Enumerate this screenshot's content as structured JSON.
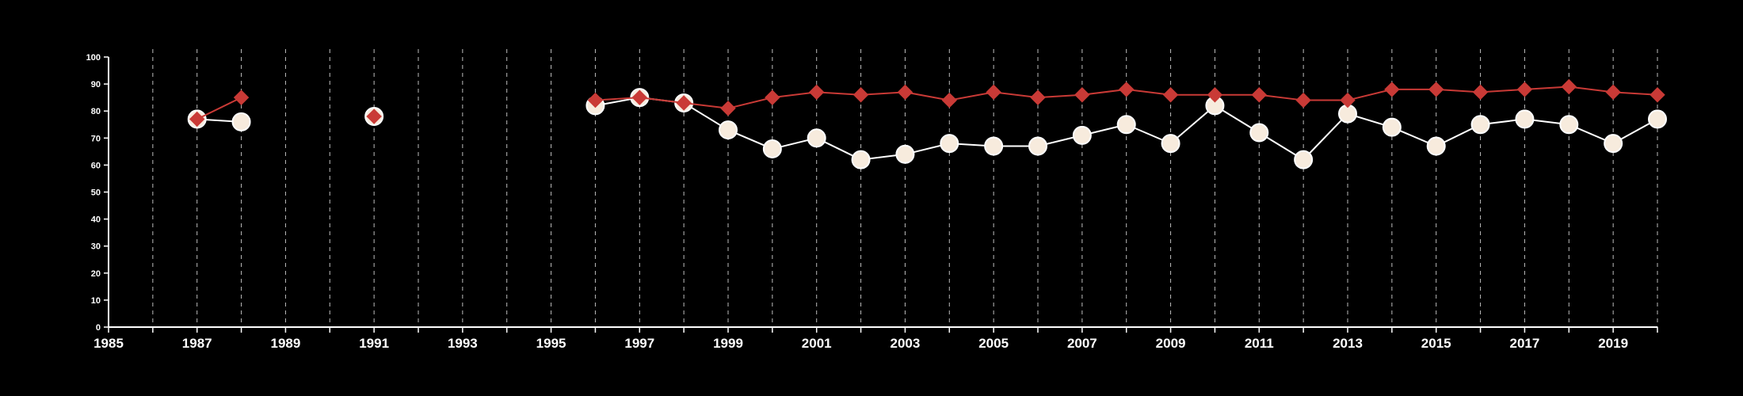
{
  "chart_data": {
    "type": "line",
    "title": "",
    "xlabel": "",
    "ylabel": "",
    "xlim": [
      1985,
      2020
    ],
    "ylim": [
      0,
      100
    ],
    "xticks": [
      1985,
      1987,
      1989,
      1991,
      1993,
      1995,
      1997,
      1999,
      2001,
      2003,
      2005,
      2007,
      2009,
      2011,
      2013,
      2015,
      2017,
      2019
    ],
    "yticks": [
      0,
      10,
      20,
      30,
      40,
      50,
      60,
      70,
      80,
      90,
      100
    ],
    "vertical_gridlines": "dashed, every year from 1986 to 2020",
    "background": "#000000",
    "axis_color": "#ffffff",
    "series": [
      {
        "marker": "circle",
        "color": "#ffffff",
        "fill": "#f7ebdd",
        "points": [
          [
            1987,
            77
          ],
          [
            1988,
            76
          ],
          null,
          [
            1991,
            78
          ],
          null,
          [
            1996,
            82
          ],
          [
            1997,
            85
          ],
          [
            1998,
            83
          ],
          [
            1999,
            73
          ],
          [
            2000,
            66
          ],
          [
            2001,
            70
          ],
          [
            2002,
            62
          ],
          [
            2003,
            64
          ],
          [
            2004,
            68
          ],
          [
            2005,
            67
          ],
          [
            2006,
            67
          ],
          [
            2007,
            71
          ],
          [
            2008,
            75
          ],
          [
            2009,
            68
          ],
          [
            2010,
            82
          ],
          [
            2011,
            72
          ],
          [
            2012,
            62
          ],
          [
            2013,
            79
          ],
          [
            2014,
            74
          ],
          [
            2015,
            67
          ],
          [
            2016,
            75
          ],
          [
            2017,
            77
          ],
          [
            2018,
            75
          ],
          [
            2019,
            68
          ],
          [
            2020,
            77
          ]
        ]
      },
      {
        "marker": "diamond",
        "color": "#c93a36",
        "fill": "#c93a36",
        "points": [
          [
            1987,
            77
          ],
          [
            1988,
            85
          ],
          null,
          [
            1991,
            78
          ],
          null,
          [
            1996,
            84
          ],
          [
            1997,
            85
          ],
          [
            1998,
            83
          ],
          [
            1999,
            81
          ],
          [
            2000,
            85
          ],
          [
            2001,
            87
          ],
          [
            2002,
            86
          ],
          [
            2003,
            87
          ],
          [
            2004,
            84
          ],
          [
            2005,
            87
          ],
          [
            2006,
            85
          ],
          [
            2007,
            86
          ],
          [
            2008,
            88
          ],
          [
            2009,
            86
          ],
          [
            2010,
            86
          ],
          [
            2011,
            86
          ],
          [
            2012,
            84
          ],
          [
            2013,
            84
          ],
          [
            2014,
            88
          ],
          [
            2015,
            88
          ],
          [
            2016,
            87
          ],
          [
            2017,
            88
          ],
          [
            2018,
            89
          ],
          [
            2019,
            87
          ],
          [
            2020,
            86
          ]
        ]
      }
    ]
  }
}
